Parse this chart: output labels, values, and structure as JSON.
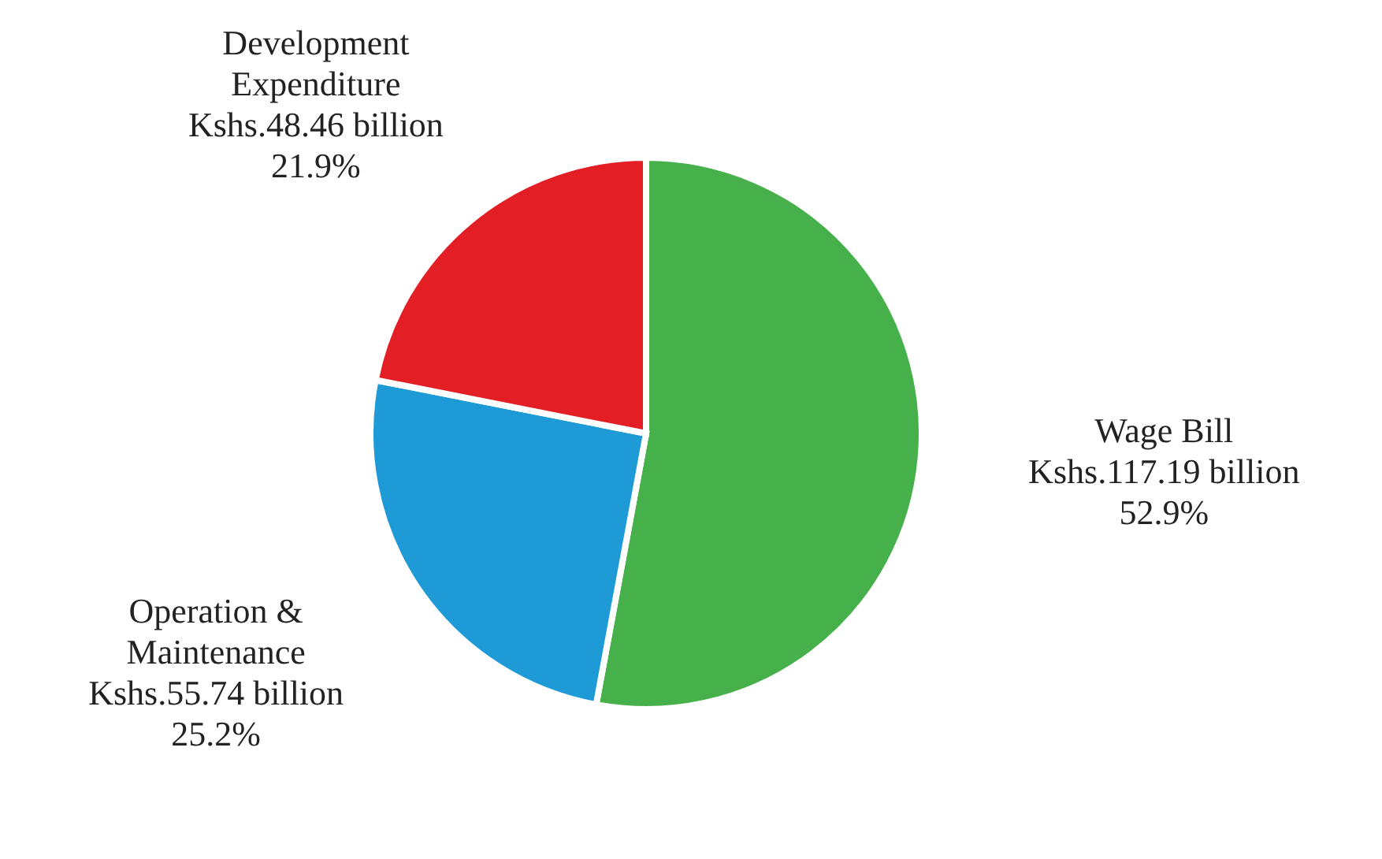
{
  "chart_data": {
    "type": "pie",
    "categories": [
      "Wage Bill",
      "Operation & Maintenance",
      "Development Expenditure"
    ],
    "values": [
      52.9,
      25.2,
      21.9
    ],
    "value_labels": [
      "52.9%",
      "25.2%",
      "21.9%"
    ],
    "annotations": [
      "Kshs.117.19 billion",
      "Kshs.55.74 billion",
      "Kshs.48.46 billion"
    ],
    "colors": [
      "#46b04a",
      "#1e9bd7",
      "#e31e24"
    ]
  }
}
